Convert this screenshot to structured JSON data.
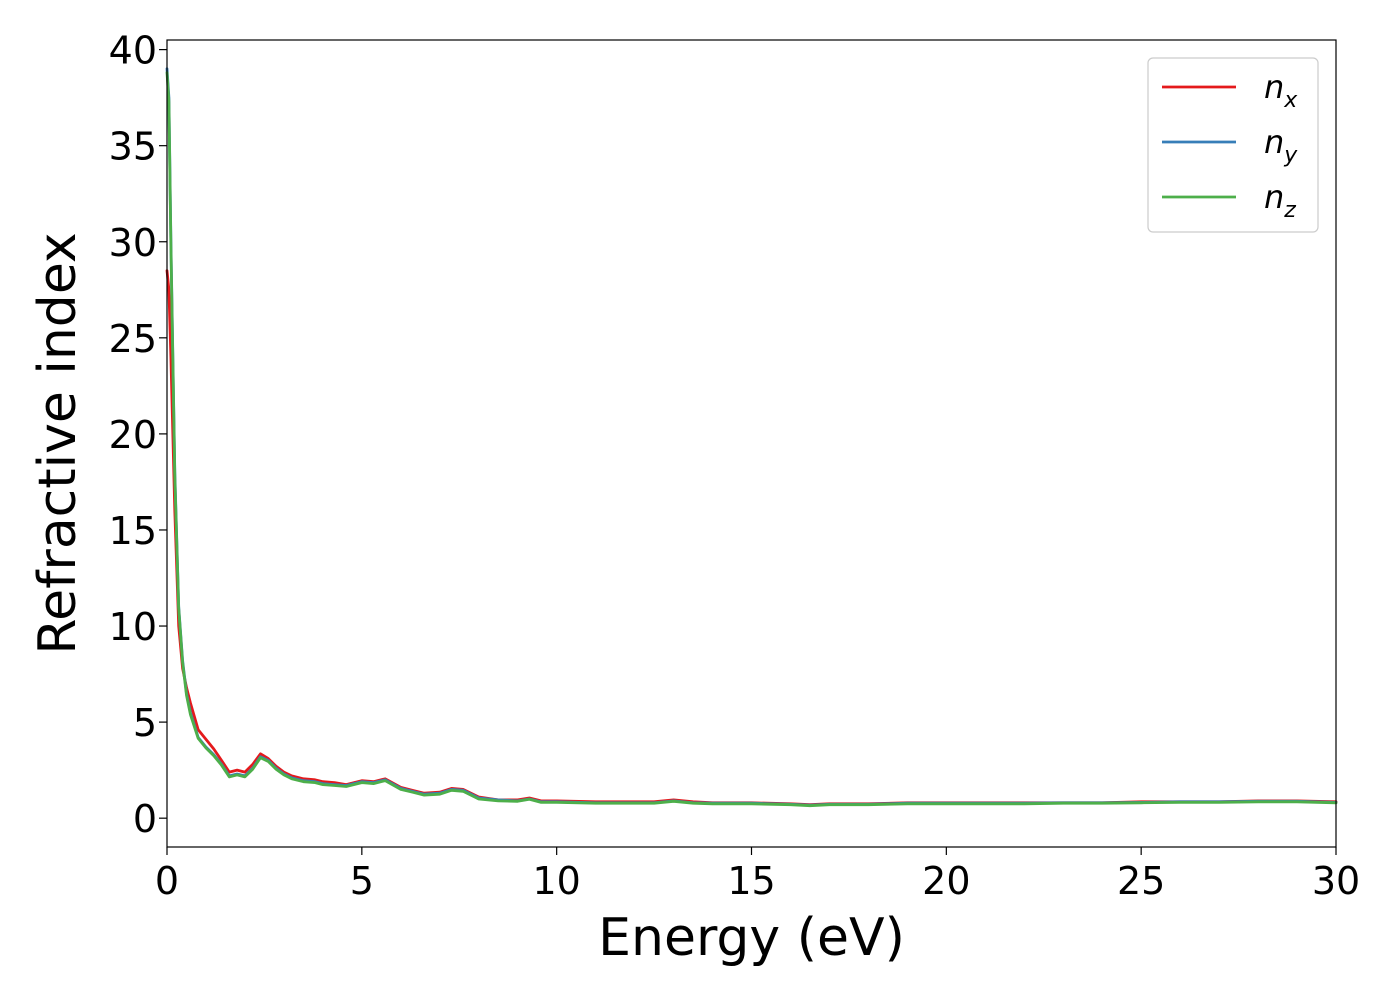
{
  "chart_data": {
    "type": "line",
    "title": "",
    "xlabel": "Energy (eV)",
    "ylabel": "Refractive index",
    "xlim": [
      0,
      30
    ],
    "ylim": [
      -1.5,
      40.5
    ],
    "xticks": [
      0,
      5,
      10,
      15,
      20,
      25,
      30
    ],
    "yticks": [
      0,
      5,
      10,
      15,
      20,
      25,
      30,
      35,
      40
    ],
    "grid": false,
    "legend_position": "top-right",
    "series": [
      {
        "name": "n",
        "sub": "x",
        "color": "#e41a1c",
        "x": [
          0,
          0.05,
          0.1,
          0.2,
          0.3,
          0.4,
          0.5,
          0.6,
          0.8,
          1.0,
          1.2,
          1.4,
          1.6,
          1.8,
          2.0,
          2.2,
          2.4,
          2.6,
          2.8,
          3.0,
          3.2,
          3.5,
          3.8,
          4.0,
          4.3,
          4.6,
          5.0,
          5.3,
          5.6,
          6.0,
          6.3,
          6.6,
          7.0,
          7.3,
          7.6,
          8.0,
          8.5,
          9.0,
          9.3,
          9.6,
          10,
          11,
          12,
          12.5,
          13,
          13.5,
          14,
          15,
          16,
          16.5,
          17,
          18,
          19,
          20,
          21,
          22,
          23,
          24,
          25,
          26,
          27,
          28,
          29,
          30
        ],
        "y": [
          28.5,
          27.5,
          24,
          16,
          10,
          7.8,
          6.8,
          6.0,
          4.6,
          4.1,
          3.6,
          3.0,
          2.4,
          2.5,
          2.4,
          2.8,
          3.35,
          3.1,
          2.7,
          2.4,
          2.2,
          2.05,
          2.0,
          1.9,
          1.85,
          1.75,
          1.95,
          1.9,
          2.05,
          1.6,
          1.45,
          1.3,
          1.35,
          1.55,
          1.5,
          1.1,
          0.95,
          0.95,
          1.05,
          0.9,
          0.9,
          0.85,
          0.85,
          0.85,
          0.95,
          0.85,
          0.8,
          0.8,
          0.75,
          0.7,
          0.75,
          0.75,
          0.8,
          0.8,
          0.8,
          0.8,
          0.8,
          0.8,
          0.85,
          0.85,
          0.85,
          0.9,
          0.9,
          0.85
        ]
      },
      {
        "name": "n",
        "sub": "y",
        "color": "#377eb8",
        "x": [
          0,
          0.05,
          0.1,
          0.2,
          0.3,
          0.4,
          0.5,
          0.6,
          0.8,
          1.0,
          1.2,
          1.4,
          1.6,
          1.8,
          2.0,
          2.2,
          2.4,
          2.6,
          2.8,
          3.0,
          3.2,
          3.5,
          3.8,
          4.0,
          4.3,
          4.6,
          5.0,
          5.3,
          5.6,
          6.0,
          6.3,
          6.6,
          7.0,
          7.3,
          7.6,
          8.0,
          8.5,
          9.0,
          9.3,
          9.6,
          10,
          11,
          12,
          12.5,
          13,
          13.5,
          14,
          15,
          16,
          16.5,
          17,
          18,
          19,
          20,
          21,
          22,
          23,
          24,
          25,
          26,
          27,
          28,
          29,
          30
        ],
        "y": [
          39.0,
          37.5,
          30,
          18,
          11,
          8.2,
          6.5,
          5.5,
          4.2,
          3.7,
          3.3,
          2.8,
          2.2,
          2.3,
          2.2,
          2.6,
          3.2,
          3.0,
          2.6,
          2.3,
          2.1,
          1.95,
          1.9,
          1.8,
          1.75,
          1.7,
          1.9,
          1.85,
          2.0,
          1.55,
          1.4,
          1.25,
          1.3,
          1.5,
          1.45,
          1.05,
          0.95,
          0.9,
          1.0,
          0.85,
          0.85,
          0.8,
          0.8,
          0.8,
          0.9,
          0.8,
          0.78,
          0.78,
          0.72,
          0.68,
          0.72,
          0.72,
          0.78,
          0.78,
          0.78,
          0.78,
          0.8,
          0.8,
          0.82,
          0.85,
          0.85,
          0.88,
          0.88,
          0.82
        ]
      },
      {
        "name": "n",
        "sub": "z",
        "color": "#4daf4a",
        "x": [
          0,
          0.05,
          0.1,
          0.2,
          0.3,
          0.4,
          0.5,
          0.6,
          0.8,
          1.0,
          1.2,
          1.4,
          1.6,
          1.8,
          2.0,
          2.2,
          2.4,
          2.6,
          2.8,
          3.0,
          3.2,
          3.5,
          3.8,
          4.0,
          4.3,
          4.6,
          5.0,
          5.3,
          5.6,
          6.0,
          6.3,
          6.6,
          7.0,
          7.3,
          7.6,
          8.0,
          8.5,
          9.0,
          9.3,
          9.6,
          10,
          11,
          12,
          12.5,
          13,
          13.5,
          14,
          15,
          16,
          16.5,
          17,
          18,
          19,
          20,
          21,
          22,
          23,
          24,
          25,
          26,
          27,
          28,
          29,
          30
        ],
        "y": [
          38.8,
          37.3,
          29.8,
          17.8,
          10.9,
          8.1,
          6.4,
          5.4,
          4.15,
          3.65,
          3.25,
          2.75,
          2.15,
          2.25,
          2.15,
          2.55,
          3.15,
          2.95,
          2.55,
          2.25,
          2.05,
          1.9,
          1.85,
          1.75,
          1.7,
          1.65,
          1.85,
          1.8,
          1.95,
          1.5,
          1.35,
          1.2,
          1.25,
          1.45,
          1.4,
          1.0,
          0.9,
          0.88,
          0.98,
          0.82,
          0.82,
          0.78,
          0.78,
          0.78,
          0.88,
          0.78,
          0.75,
          0.75,
          0.7,
          0.65,
          0.7,
          0.7,
          0.75,
          0.75,
          0.75,
          0.75,
          0.78,
          0.78,
          0.8,
          0.82,
          0.82,
          0.85,
          0.85,
          0.8
        ]
      }
    ]
  }
}
